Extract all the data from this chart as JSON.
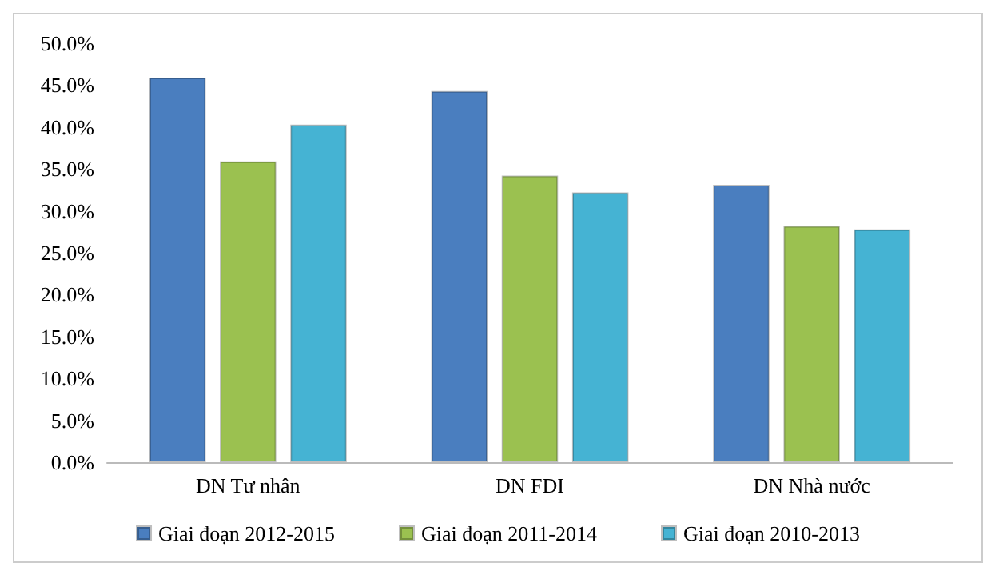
{
  "chart_data": {
    "type": "bar",
    "categories": [
      "DN Tư nhân",
      "DN FDI",
      "DN Nhà nước"
    ],
    "series": [
      {
        "name": "Giai đoạn 2012-2015",
        "color": "#4a7ebf",
        "values": [
          45.9,
          44.3,
          33.1
        ]
      },
      {
        "name": "Giai đoạn 2011-2014",
        "color": "#9bc150",
        "values": [
          35.9,
          34.2,
          28.2
        ]
      },
      {
        "name": "Giai đoạn 2010-2013",
        "color": "#45b3d3",
        "values": [
          40.3,
          32.2,
          27.8
        ]
      }
    ],
    "ylim": [
      0,
      50
    ],
    "yticks": [
      {
        "value": 0,
        "label": "0.0%"
      },
      {
        "value": 5,
        "label": "5.0%"
      },
      {
        "value": 10,
        "label": "10.0%"
      },
      {
        "value": 15,
        "label": "15.0%"
      },
      {
        "value": 20,
        "label": "20.0%"
      },
      {
        "value": 25,
        "label": "25.0%"
      },
      {
        "value": 30,
        "label": "30.0%"
      },
      {
        "value": 35,
        "label": "35.0%"
      },
      {
        "value": 40,
        "label": "40.0%"
      },
      {
        "value": 45,
        "label": "45.0%"
      },
      {
        "value": 50,
        "label": "50.0%"
      }
    ],
    "grid": false,
    "legend": "bottom"
  }
}
